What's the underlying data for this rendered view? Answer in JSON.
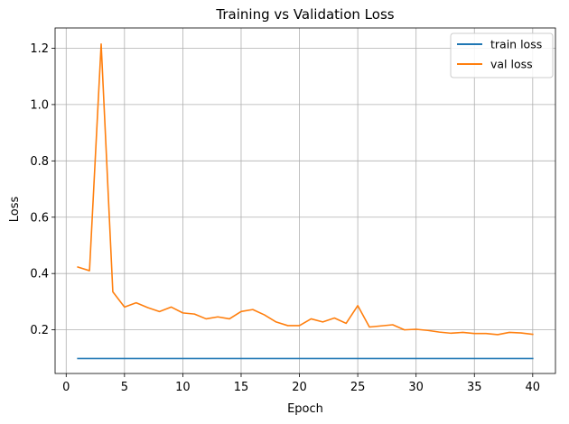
{
  "chart_data": {
    "type": "line",
    "title": "Training vs Validation Loss",
    "xlabel": "Epoch",
    "ylabel": "Loss",
    "xlim": [
      -0.95,
      41.95
    ],
    "ylim": [
      0.045,
      1.272
    ],
    "xticks": [
      0,
      5,
      10,
      15,
      20,
      25,
      30,
      35,
      40
    ],
    "yticks": [
      0.2,
      0.4,
      0.6,
      0.8,
      1.0,
      1.2
    ],
    "ytick_labels": [
      "0.2",
      "0.4",
      "0.6",
      "0.8",
      "1.0",
      "1.2"
    ],
    "grid": true,
    "legend_position": "top-right",
    "x": [
      1,
      2,
      3,
      4,
      5,
      6,
      7,
      8,
      9,
      10,
      11,
      12,
      13,
      14,
      15,
      16,
      17,
      18,
      19,
      20,
      21,
      22,
      23,
      24,
      25,
      26,
      27,
      28,
      29,
      30,
      31,
      32,
      33,
      34,
      35,
      36,
      37,
      38,
      39,
      40
    ],
    "series": [
      {
        "name": "train loss",
        "color": "#1f77b4",
        "values": [
          0.098,
          0.098,
          0.098,
          0.098,
          0.098,
          0.098,
          0.098,
          0.098,
          0.098,
          0.098,
          0.098,
          0.098,
          0.098,
          0.098,
          0.098,
          0.098,
          0.098,
          0.098,
          0.098,
          0.098,
          0.098,
          0.098,
          0.098,
          0.098,
          0.098,
          0.098,
          0.098,
          0.098,
          0.098,
          0.098,
          0.098,
          0.098,
          0.098,
          0.098,
          0.098,
          0.098,
          0.098,
          0.098,
          0.098,
          0.098
        ]
      },
      {
        "name": "val loss",
        "color": "#ff7f0e",
        "values": [
          0.423,
          0.41,
          1.215,
          0.335,
          0.281,
          0.296,
          0.279,
          0.265,
          0.281,
          0.26,
          0.256,
          0.239,
          0.246,
          0.239,
          0.265,
          0.272,
          0.253,
          0.228,
          0.215,
          0.215,
          0.239,
          0.228,
          0.242,
          0.223,
          0.286,
          0.21,
          0.214,
          0.218,
          0.2,
          0.202,
          0.198,
          0.192,
          0.188,
          0.191,
          0.187,
          0.187,
          0.183,
          0.191,
          0.189,
          0.184
        ]
      }
    ]
  }
}
